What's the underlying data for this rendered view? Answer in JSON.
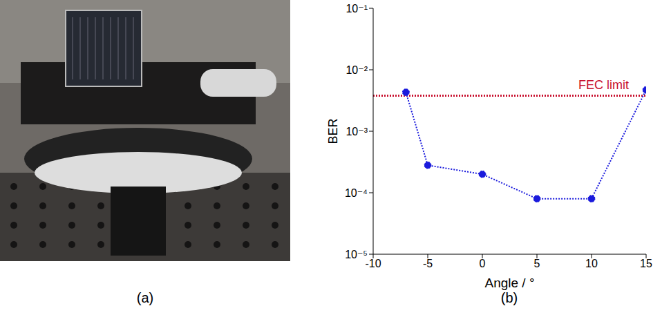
{
  "photo": {
    "caption": "(a)"
  },
  "chart_data": {
    "type": "line",
    "caption": "(b)",
    "x_label": "Angle / °",
    "y_label": "BER",
    "x": [
      -7,
      -5,
      0,
      5,
      10,
      15
    ],
    "values": [
      0.0043,
      0.00028,
      0.0002,
      8e-05,
      8e-05,
      0.0047
    ],
    "color": "#1a1adc",
    "marker": "circle",
    "line_style": "dotted",
    "log": "y",
    "grid": false,
    "xlim": [
      -10,
      15
    ],
    "xticks": [
      -10,
      -5,
      0,
      5,
      10,
      15
    ],
    "ylim": [
      1e-05,
      0.1
    ],
    "yticks": [
      {
        "value": 1e-05,
        "label": "10⁻⁵"
      },
      {
        "value": 0.0001,
        "label": "10⁻⁴"
      },
      {
        "value": 0.001,
        "label": "10⁻³"
      },
      {
        "value": 0.01,
        "label": "10⁻²"
      },
      {
        "value": 0.1,
        "label": "10⁻¹"
      }
    ],
    "hline": {
      "value": 0.0038,
      "label": "FEC limit",
      "color": "#c8102e",
      "line_style": "dotted"
    }
  }
}
